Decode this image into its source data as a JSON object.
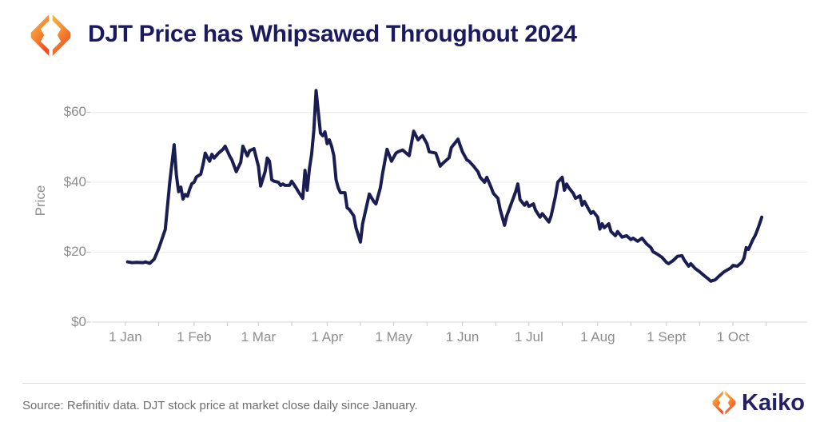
{
  "header": {
    "title": "DJT Price has Whipsawed Throughout 2024",
    "logo": "kaiko-diamond-logo"
  },
  "chart_data": {
    "type": "line",
    "title": "DJT Price has Whipsawed Throughout 2024",
    "xlabel": "",
    "ylabel": "Price",
    "x_unit": "day_of_year_2024 (0 = 1 Jan)",
    "x_domain_days": [
      -15.1,
      307.5
    ],
    "y_domain": [
      0,
      69.7
    ],
    "grid": "horizontal",
    "legend": "none",
    "line_color": "#191d52",
    "y_ticks": [
      {
        "label": "$0",
        "value": 0
      },
      {
        "label": "$20",
        "value": 20
      },
      {
        "label": "$40",
        "value": 40
      },
      {
        "label": "$60",
        "value": 60
      }
    ],
    "x_ticks": [
      {
        "label": "1 Jan",
        "day": 0
      },
      {
        "label": "1 Feb",
        "day": 31
      },
      {
        "label": "1 Mar",
        "day": 60
      },
      {
        "label": "1 Apr",
        "day": 91
      },
      {
        "label": "1 May",
        "day": 121
      },
      {
        "label": "1 Jun",
        "day": 152
      },
      {
        "label": "1 Jul",
        "day": 182
      },
      {
        "label": "1 Aug",
        "day": 213
      },
      {
        "label": "1 Sept",
        "day": 244
      },
      {
        "label": "1 Oct",
        "day": 274
      }
    ],
    "x_minor_tick_days": [
      15,
      46,
      75,
      106,
      136,
      167,
      197,
      228,
      259,
      289
    ],
    "series": [
      {
        "name": "DJT stock price, USD (daily close)",
        "points": [
          [
            1,
            17.2
          ],
          [
            3,
            17.0
          ],
          [
            5,
            17.1
          ],
          [
            8,
            17.0
          ],
          [
            9,
            17.2
          ],
          [
            11,
            16.8
          ],
          [
            13,
            18.0
          ],
          [
            15,
            21.0
          ],
          [
            17,
            24.7
          ],
          [
            18,
            26.5
          ],
          [
            20,
            40.0
          ],
          [
            22,
            50.7
          ],
          [
            23,
            42.0
          ],
          [
            24,
            37.3
          ],
          [
            25,
            38.6
          ],
          [
            26,
            35.2
          ],
          [
            27,
            36.5
          ],
          [
            28,
            36.0
          ],
          [
            29,
            38.0
          ],
          [
            30,
            39.6
          ],
          [
            31,
            40.0
          ],
          [
            32,
            41.5
          ],
          [
            34,
            42.3
          ],
          [
            35,
            45.0
          ],
          [
            36,
            48.3
          ],
          [
            37,
            47.1
          ],
          [
            38,
            46.0
          ],
          [
            39,
            48.0
          ],
          [
            40,
            46.9
          ],
          [
            42,
            48.3
          ],
          [
            44,
            49.4
          ],
          [
            45,
            50.3
          ],
          [
            47,
            47.5
          ],
          [
            48,
            46.4
          ],
          [
            50,
            43.0
          ],
          [
            52,
            45.7
          ],
          [
            53,
            50.3
          ],
          [
            55,
            47.5
          ],
          [
            56,
            49.0
          ],
          [
            58,
            49.6
          ],
          [
            59,
            47.0
          ],
          [
            60,
            44.5
          ],
          [
            61,
            38.9
          ],
          [
            63,
            43.0
          ],
          [
            64,
            46.9
          ],
          [
            65,
            46.0
          ],
          [
            66,
            40.7
          ],
          [
            67,
            40.3
          ],
          [
            69,
            40.0
          ],
          [
            70,
            39.1
          ],
          [
            71,
            39.5
          ],
          [
            72,
            39.1
          ],
          [
            74,
            39.1
          ],
          [
            75,
            40.3
          ],
          [
            77,
            38.4
          ],
          [
            78,
            37.3
          ],
          [
            80,
            35.4
          ],
          [
            81,
            43.4
          ],
          [
            82,
            37.7
          ],
          [
            83,
            44.0
          ],
          [
            84,
            48.0
          ],
          [
            85,
            54.9
          ],
          [
            86,
            66.2
          ],
          [
            87,
            60.0
          ],
          [
            88,
            54.0
          ],
          [
            89,
            53.3
          ],
          [
            90,
            54.4
          ],
          [
            91,
            51.0
          ],
          [
            92,
            52.1
          ],
          [
            93,
            50.3
          ],
          [
            94,
            47.6
          ],
          [
            95,
            40.7
          ],
          [
            96,
            38.4
          ],
          [
            97,
            37.0
          ],
          [
            99,
            37.0
          ],
          [
            100,
            32.7
          ],
          [
            101,
            32.2
          ],
          [
            103,
            30.4
          ],
          [
            104,
            27.0
          ],
          [
            106,
            22.9
          ],
          [
            107,
            28.1
          ],
          [
            110,
            36.6
          ],
          [
            112,
            34.5
          ],
          [
            113,
            33.8
          ],
          [
            115,
            38.4
          ],
          [
            116,
            42.5
          ],
          [
            118,
            49.4
          ],
          [
            120,
            46.0
          ],
          [
            122,
            48.3
          ],
          [
            123,
            48.7
          ],
          [
            125,
            49.2
          ],
          [
            128,
            47.6
          ],
          [
            130,
            54.6
          ],
          [
            132,
            52.1
          ],
          [
            133,
            52.8
          ],
          [
            134,
            53.3
          ],
          [
            136,
            51.0
          ],
          [
            137,
            48.7
          ],
          [
            140,
            48.3
          ],
          [
            142,
            44.6
          ],
          [
            143,
            45.3
          ],
          [
            146,
            47.0
          ],
          [
            147,
            49.9
          ],
          [
            149,
            51.5
          ],
          [
            150,
            52.3
          ],
          [
            152,
            48.7
          ],
          [
            154,
            46.4
          ],
          [
            155,
            46.0
          ],
          [
            157,
            44.6
          ],
          [
            159,
            43.0
          ],
          [
            160,
            41.4
          ],
          [
            162,
            40.0
          ],
          [
            163,
            41.4
          ],
          [
            165,
            38.4
          ],
          [
            166,
            36.8
          ],
          [
            168,
            35.4
          ],
          [
            169,
            32.2
          ],
          [
            171,
            27.7
          ],
          [
            172,
            30.4
          ],
          [
            174,
            33.8
          ],
          [
            176,
            37.3
          ],
          [
            177,
            39.5
          ],
          [
            178,
            35.0
          ],
          [
            180,
            33.4
          ],
          [
            181,
            34.3
          ],
          [
            182,
            33.1
          ],
          [
            184,
            33.8
          ],
          [
            185,
            32.0
          ],
          [
            187,
            30.0
          ],
          [
            188,
            31.0
          ],
          [
            191,
            28.6
          ],
          [
            192,
            30.4
          ],
          [
            194,
            36.1
          ],
          [
            195,
            40.0
          ],
          [
            197,
            41.4
          ],
          [
            198,
            37.7
          ],
          [
            199,
            39.5
          ],
          [
            200,
            38.4
          ],
          [
            202,
            36.8
          ],
          [
            203,
            35.4
          ],
          [
            205,
            36.1
          ],
          [
            206,
            33.4
          ],
          [
            207,
            34.5
          ],
          [
            209,
            32.2
          ],
          [
            210,
            31.1
          ],
          [
            211,
            31.6
          ],
          [
            213,
            30.0
          ],
          [
            214,
            26.6
          ],
          [
            215,
            28.1
          ],
          [
            216,
            27.0
          ],
          [
            218,
            28.1
          ],
          [
            219,
            25.9
          ],
          [
            221,
            24.7
          ],
          [
            222,
            25.9
          ],
          [
            224,
            24.3
          ],
          [
            226,
            24.7
          ],
          [
            228,
            23.6
          ],
          [
            229,
            24.0
          ],
          [
            231,
            23.1
          ],
          [
            233,
            24.0
          ],
          [
            235,
            22.4
          ],
          [
            237,
            21.3
          ],
          [
            238,
            20.1
          ],
          [
            240,
            19.4
          ],
          [
            242,
            18.5
          ],
          [
            244,
            17.1
          ],
          [
            245,
            16.7
          ],
          [
            247,
            17.6
          ],
          [
            249,
            18.8
          ],
          [
            251,
            19.0
          ],
          [
            252,
            17.8
          ],
          [
            254,
            16.0
          ],
          [
            255,
            16.7
          ],
          [
            257,
            15.3
          ],
          [
            259,
            14.4
          ],
          [
            261,
            13.3
          ],
          [
            263,
            12.3
          ],
          [
            264,
            11.7
          ],
          [
            266,
            12.1
          ],
          [
            268,
            13.3
          ],
          [
            270,
            14.4
          ],
          [
            272,
            15.1
          ],
          [
            273,
            15.5
          ],
          [
            274,
            16.2
          ],
          [
            276,
            16.0
          ],
          [
            278,
            17.1
          ],
          [
            279,
            18.3
          ],
          [
            280,
            21.3
          ],
          [
            281,
            20.8
          ],
          [
            283,
            23.6
          ],
          [
            284,
            24.7
          ],
          [
            285,
            26.3
          ],
          [
            286,
            28.1
          ],
          [
            287,
            30.0
          ]
        ]
      }
    ]
  },
  "footer": {
    "source_text": "Source: Refinitiv data. DJT stock price at market close daily since January.",
    "brand_wordmark": "Kaiko"
  },
  "colors": {
    "title_navy": "#1b1a61",
    "line_navy": "#191d52",
    "brand_navy": "#232063",
    "axis_text_gray": "#8d8d8d",
    "footer_text_gray": "#6e6e6e",
    "grid_gray": "#ededed",
    "axis_line_gray": "#d4d4d4",
    "tick_gray": "#c9c9c9",
    "logo_orange_top": "#FBB942",
    "logo_orange_mid": "#F68C33",
    "logo_orange_bottom": "#EF4E23"
  }
}
